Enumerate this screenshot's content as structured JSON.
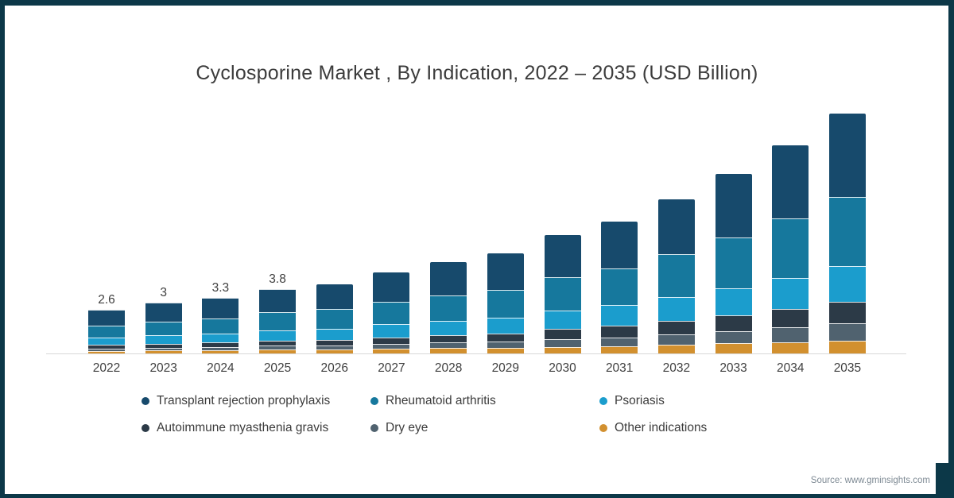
{
  "title": "Cyclosporine Market , By Indication, 2022 – 2035 (USD Billion)",
  "source": "Source: www.gminsights.com",
  "colors": {
    "frame": "#0C3848",
    "axis_line": "#D9D9D9",
    "title_text": "#3C3C3C",
    "axis_text": "#3F3F3F",
    "source_text": "#7E8A94"
  },
  "chart_data": {
    "type": "bar",
    "stacked": true,
    "title": "Cyclosporine Market , By Indication, 2022 – 2035 (USD Billion)",
    "unit": "USD Billion",
    "y_axis_visible": false,
    "grid": false,
    "legend_position": "bottom",
    "ylim": [
      0,
      15
    ],
    "categories": [
      "2022",
      "2023",
      "2024",
      "2025",
      "2026",
      "2027",
      "2028",
      "2029",
      "2030",
      "2031",
      "2032",
      "2033",
      "2034",
      "2035"
    ],
    "totals": [
      2.6,
      3.0,
      3.3,
      3.8,
      4.1,
      4.8,
      5.4,
      5.9,
      7.0,
      7.8,
      9.1,
      10.6,
      12.3,
      14.2
    ],
    "bar_labels": [
      "2.6",
      "3",
      "3.3",
      "3.8",
      null,
      null,
      null,
      null,
      null,
      null,
      null,
      null,
      null,
      null
    ],
    "stack_order_bottom_to_top": [
      "Other indications",
      "Dry eye",
      "Autoimmune myasthenia gravis",
      "Psoriasis",
      "Rheumatoid arthritis",
      "Transplant rejection prophylaxis"
    ],
    "series": [
      {
        "name": "Transplant rejection prophylaxis",
        "color": "#174A6C",
        "values": [
          0.96,
          1.11,
          1.21,
          1.39,
          1.49,
          1.74,
          1.95,
          2.12,
          2.5,
          2.78,
          3.23,
          3.74,
          4.32,
          4.97
        ]
      },
      {
        "name": "Rheumatoid arthritis",
        "color": "#16789D",
        "values": [
          0.7,
          0.81,
          0.9,
          1.04,
          1.13,
          1.32,
          1.5,
          1.64,
          1.95,
          2.19,
          2.56,
          3.0,
          3.49,
          4.05
        ]
      },
      {
        "name": "Psoriasis",
        "color": "#1B9DCD",
        "values": [
          0.44,
          0.51,
          0.55,
          0.63,
          0.67,
          0.78,
          0.87,
          0.94,
          1.1,
          1.22,
          1.41,
          1.62,
          1.86,
          2.13
        ]
      },
      {
        "name": "Autoimmune myasthenia gravis",
        "color": "#2C3A47",
        "values": [
          0.2,
          0.23,
          0.25,
          0.3,
          0.33,
          0.39,
          0.44,
          0.49,
          0.59,
          0.66,
          0.78,
          0.92,
          1.08,
          1.26
        ]
      },
      {
        "name": "Dry eye",
        "color": "#50626F",
        "values": [
          0.14,
          0.16,
          0.19,
          0.22,
          0.24,
          0.29,
          0.33,
          0.37,
          0.45,
          0.52,
          0.62,
          0.73,
          0.87,
          1.02
        ]
      },
      {
        "name": "Other indications",
        "color": "#D2902F",
        "values": [
          0.16,
          0.18,
          0.2,
          0.23,
          0.24,
          0.28,
          0.31,
          0.34,
          0.4,
          0.44,
          0.51,
          0.59,
          0.67,
          0.77
        ]
      }
    ]
  }
}
